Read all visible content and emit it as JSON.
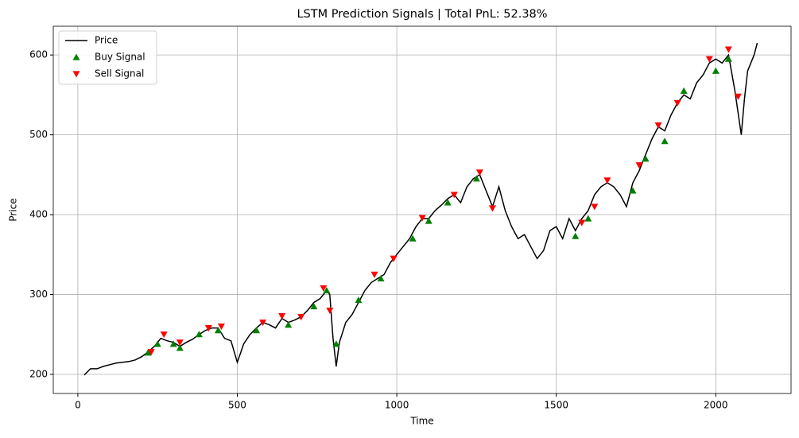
{
  "chart_data": {
    "type": "line",
    "title": "LSTM Prediction Signals | Total PnL: 52.38%",
    "x_label": "Time",
    "y_label": "Price",
    "xlim": [
      -77,
      2236
    ],
    "ylim": [
      176,
      636
    ],
    "xticks": [
      0,
      500,
      1000,
      1500,
      2000
    ],
    "yticks": [
      200,
      300,
      400,
      500,
      600
    ],
    "grid": true,
    "legend": "upper-left",
    "series": [
      {
        "name": "Price",
        "kind": "line",
        "color": "#000000",
        "x": [
          20,
          40,
          60,
          80,
          100,
          120,
          140,
          160,
          180,
          200,
          220,
          240,
          260,
          280,
          300,
          320,
          340,
          360,
          380,
          400,
          420,
          440,
          460,
          480,
          500,
          520,
          540,
          560,
          580,
          600,
          620,
          640,
          660,
          680,
          700,
          720,
          740,
          760,
          780,
          790,
          800,
          810,
          820,
          840,
          860,
          880,
          900,
          920,
          940,
          960,
          980,
          1000,
          1020,
          1040,
          1060,
          1080,
          1100,
          1120,
          1140,
          1160,
          1180,
          1200,
          1220,
          1240,
          1260,
          1280,
          1300,
          1320,
          1340,
          1360,
          1380,
          1400,
          1420,
          1440,
          1460,
          1480,
          1500,
          1520,
          1540,
          1560,
          1580,
          1600,
          1620,
          1640,
          1660,
          1680,
          1700,
          1720,
          1740,
          1760,
          1780,
          1800,
          1820,
          1840,
          1860,
          1880,
          1900,
          1920,
          1940,
          1960,
          1980,
          2000,
          2020,
          2040,
          2060,
          2080,
          2090,
          2100,
          2120,
          2130
        ],
        "values": [
          199,
          207,
          207,
          210,
          212,
          214,
          215,
          216,
          218,
          222,
          228,
          235,
          245,
          242,
          240,
          235,
          240,
          244,
          250,
          255,
          258,
          258,
          245,
          242,
          215,
          238,
          250,
          258,
          265,
          262,
          258,
          270,
          265,
          268,
          272,
          280,
          290,
          295,
          305,
          300,
          245,
          210,
          240,
          265,
          275,
          290,
          305,
          315,
          320,
          325,
          340,
          350,
          360,
          370,
          385,
          395,
          395,
          405,
          412,
          420,
          425,
          415,
          435,
          445,
          450,
          430,
          410,
          435,
          405,
          385,
          370,
          375,
          360,
          345,
          355,
          380,
          385,
          370,
          395,
          380,
          395,
          405,
          425,
          435,
          440,
          435,
          425,
          410,
          440,
          455,
          475,
          495,
          510,
          505,
          525,
          540,
          550,
          545,
          565,
          575,
          590,
          595,
          590,
          600,
          555,
          500,
          545,
          580,
          600,
          615
        ]
      },
      {
        "name": "Buy Signal",
        "kind": "buy",
        "color": "#008000",
        "x": [
          220,
          250,
          300,
          320,
          380,
          440,
          560,
          660,
          740,
          780,
          810,
          880,
          950,
          1050,
          1100,
          1160,
          1250,
          1560,
          1600,
          1740,
          1780,
          1840,
          1900,
          2000,
          2040
        ],
        "values": [
          227,
          238,
          238,
          233,
          250,
          255,
          255,
          262,
          285,
          305,
          238,
          293,
          320,
          370,
          392,
          415,
          445,
          373,
          395,
          430,
          470,
          492,
          555,
          580,
          595
        ]
      },
      {
        "name": "Sell Signal",
        "kind": "sell",
        "color": "#ff0000",
        "x": [
          230,
          270,
          320,
          410,
          450,
          580,
          640,
          700,
          770,
          790,
          930,
          990,
          1080,
          1180,
          1260,
          1300,
          1580,
          1620,
          1660,
          1760,
          1820,
          1880,
          1980,
          2040,
          2070
        ],
        "values": [
          228,
          250,
          240,
          258,
          260,
          265,
          273,
          272,
          308,
          280,
          325,
          345,
          396,
          425,
          453,
          408,
          390,
          410,
          443,
          462,
          512,
          540,
          595,
          607,
          548
        ]
      }
    ]
  }
}
